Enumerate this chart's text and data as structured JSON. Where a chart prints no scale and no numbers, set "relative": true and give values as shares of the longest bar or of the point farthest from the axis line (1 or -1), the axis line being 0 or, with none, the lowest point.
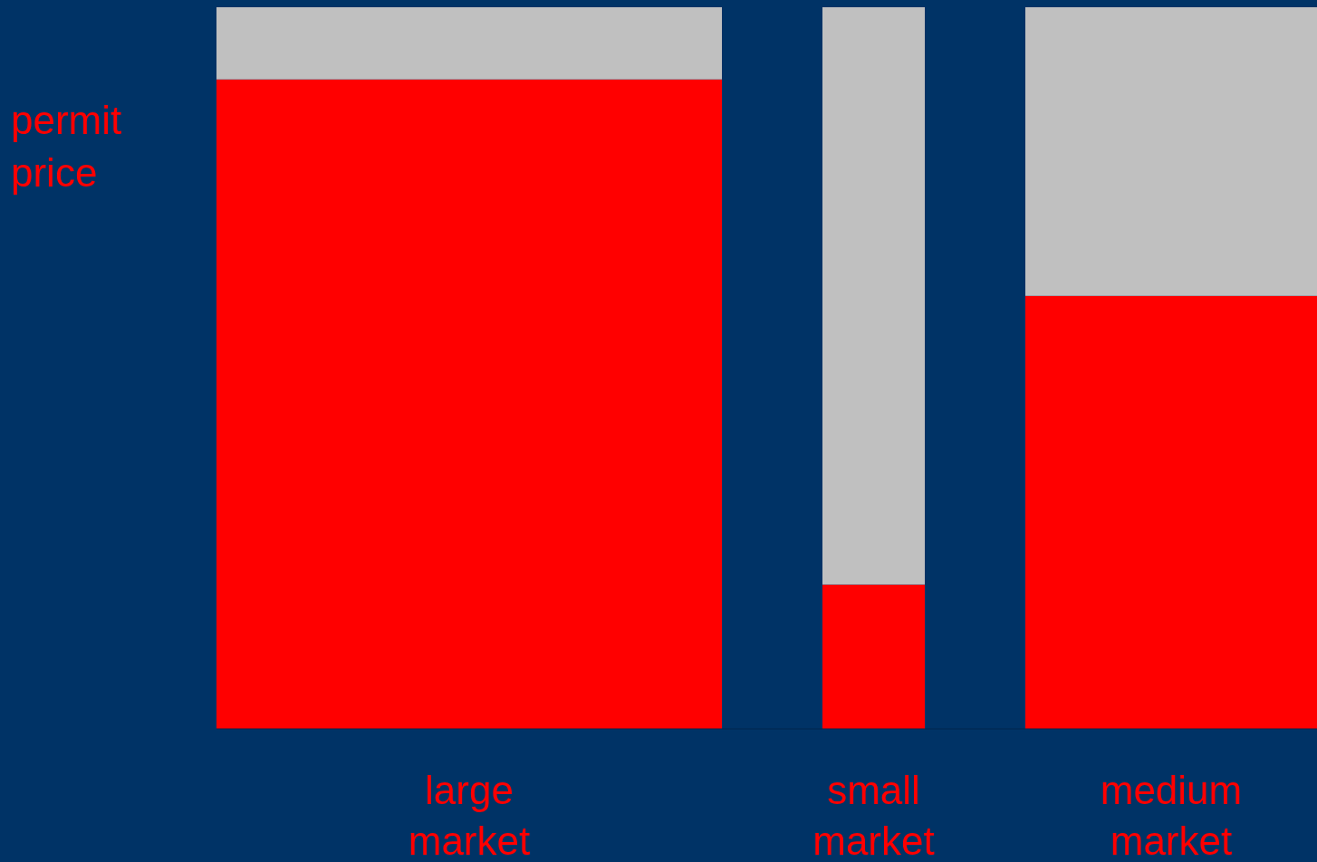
{
  "chart_data": {
    "type": "bar",
    "relative": true,
    "stacked": true,
    "ylabel": "permit price",
    "categories": [
      "large market",
      "small market",
      "medium market"
    ],
    "series": [
      {
        "color": "#ff0000",
        "values": [
          0.9,
          0.2,
          0.6
        ]
      },
      {
        "color": "#c0c0c0",
        "values": [
          0.1,
          0.8,
          0.4
        ]
      }
    ]
  }
}
